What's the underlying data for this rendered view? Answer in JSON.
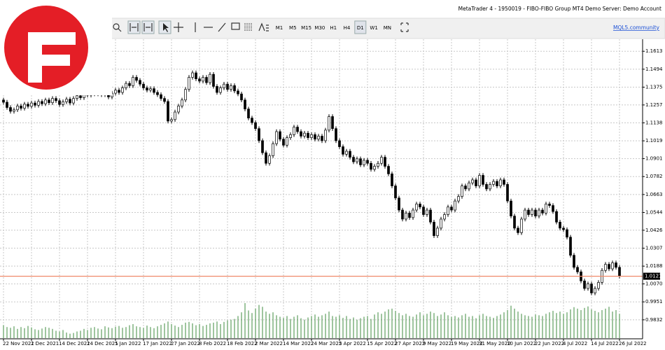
{
  "window": {
    "title": "MetaTrader 4 - 1950019 - FIBO-FIBO Group MT4 Demo Server: Demo Account"
  },
  "toolbar": {
    "timeframes": [
      "M1",
      "M5",
      "M15",
      "M30",
      "H1",
      "H4",
      "D1",
      "W1",
      "MN"
    ],
    "active": "D1",
    "link": "MQL5.community"
  },
  "chart_data": {
    "type": "candlestick",
    "categories": [
      "22 Nov 2021",
      null,
      null,
      null,
      null,
      null,
      null,
      null,
      "2 Dec 2021",
      null,
      null,
      null,
      null,
      null,
      null,
      null,
      "14 Dec 2021",
      null,
      null,
      null,
      null,
      null,
      null,
      null,
      "24 Dec 2021",
      null,
      null,
      null,
      null,
      null,
      null,
      null,
      "5 Jan 2022",
      null,
      null,
      null,
      null,
      null,
      null,
      null,
      "17 Jan 2022",
      null,
      null,
      null,
      null,
      null,
      null,
      null,
      "27 Jan 2022",
      null,
      null,
      null,
      null,
      null,
      null,
      null,
      "8 Feb 2022",
      null,
      null,
      null,
      null,
      null,
      null,
      null,
      "18 Feb 2022",
      null,
      null,
      null,
      null,
      null,
      null,
      null,
      "2 Mar 2022",
      null,
      null,
      null,
      null,
      null,
      null,
      null,
      "14 Mar 2022",
      null,
      null,
      null,
      null,
      null,
      null,
      null,
      "24 Mar 2022",
      null,
      null,
      null,
      null,
      null,
      null,
      null,
      "5 Apr 2022",
      null,
      null,
      null,
      null,
      null,
      null,
      null,
      "15 Apr 2022",
      null,
      null,
      null,
      null,
      null,
      null,
      null,
      "27 Apr 2022",
      null,
      null,
      null,
      null,
      null,
      null,
      null,
      "9 May 2022",
      null,
      null,
      null,
      null,
      null,
      null,
      null,
      "19 May 2022",
      null,
      null,
      null,
      null,
      null,
      null,
      null,
      "31 May 2022",
      null,
      null,
      null,
      null,
      null,
      null,
      null,
      "10 Jun 2022",
      null,
      null,
      null,
      null,
      null,
      null,
      null,
      "22 Jun 2022",
      null,
      null,
      null,
      null,
      null,
      null,
      null,
      "4 Jul 2022",
      null,
      null,
      null,
      null,
      null,
      null,
      null,
      "14 Jul 2022",
      null,
      null,
      null,
      null,
      null,
      null,
      null,
      "26 Jul 2022"
    ],
    "open": [
      1.129,
      1.1275,
      1.124,
      1.1215,
      1.1225,
      1.125,
      1.1235,
      1.1262,
      1.1248,
      1.127,
      1.1255,
      1.128,
      1.1265,
      1.129,
      1.1272,
      1.13,
      1.1285,
      1.126,
      1.1278,
      1.1295,
      1.127,
      1.13,
      1.1318,
      1.1305,
      1.133,
      1.1322,
      1.1345,
      1.133,
      1.135,
      1.1325,
      1.134,
      1.131,
      1.1335,
      1.1355,
      1.134,
      1.137,
      1.14,
      1.1385,
      1.144,
      1.142,
      1.1395,
      1.137,
      1.1355,
      1.1365,
      1.134,
      1.1325,
      1.13,
      1.128,
      1.115,
      1.116,
      1.121,
      1.125,
      1.129,
      1.136,
      1.144,
      1.147,
      1.143,
      1.1415,
      1.144,
      1.1405,
      1.146,
      1.138,
      1.134,
      1.137,
      1.1395,
      1.136,
      1.1385,
      1.135,
      1.133,
      1.129,
      1.123,
      1.117,
      1.114,
      1.11,
      1.102,
      1.094,
      1.087,
      1.092,
      1.1,
      1.108,
      1.103,
      1.099,
      1.104,
      1.106,
      1.111,
      1.108,
      1.105,
      1.107,
      1.104,
      1.106,
      1.103,
      1.105,
      1.102,
      1.109,
      1.118,
      1.11,
      1.102,
      1.098,
      1.093,
      1.095,
      1.091,
      1.088,
      1.09,
      1.086,
      1.089,
      1.087,
      1.083,
      1.085,
      1.087,
      1.091,
      1.085,
      1.08,
      1.072,
      1.064,
      1.056,
      1.05,
      1.054,
      1.051,
      1.056,
      1.06,
      1.058,
      1.053,
      1.056,
      1.048,
      1.039,
      1.044,
      1.05,
      1.053,
      1.058,
      1.056,
      1.062,
      1.065,
      1.072,
      1.07,
      1.074,
      1.076,
      1.072,
      1.079,
      1.073,
      1.07,
      1.073,
      1.075,
      1.072,
      1.076,
      1.073,
      1.062,
      1.052,
      1.044,
      1.041,
      1.05,
      1.056,
      1.053,
      1.056,
      1.052,
      1.056,
      1.054,
      1.06,
      1.059,
      1.055,
      1.048,
      1.044,
      1.043,
      1.038,
      1.026,
      1.018,
      1.015,
      1.009,
      1.004,
      1.007,
      1.001,
      1.004,
      1.008,
      1.016,
      1.02,
      1.017,
      1.021,
      1.018
    ],
    "high": [
      1.1305,
      1.129,
      1.1255,
      1.124,
      1.1265,
      1.1265,
      1.1277,
      1.1277,
      1.1285,
      1.1285,
      1.1295,
      1.1295,
      1.1305,
      1.1305,
      1.1315,
      1.1315,
      1.13,
      1.1293,
      1.131,
      1.131,
      1.1315,
      1.1333,
      1.1333,
      1.1345,
      1.1345,
      1.136,
      1.136,
      1.1365,
      1.1365,
      1.1355,
      1.1355,
      1.135,
      1.137,
      1.137,
      1.1385,
      1.1415,
      1.1415,
      1.1455,
      1.1455,
      1.1435,
      1.141,
      1.1385,
      1.138,
      1.138,
      1.1355,
      1.134,
      1.1315,
      1.1295,
      1.1175,
      1.1225,
      1.1265,
      1.1305,
      1.1375,
      1.1455,
      1.1485,
      1.1485,
      1.1445,
      1.1455,
      1.1455,
      1.1475,
      1.1475,
      1.1395,
      1.1385,
      1.141,
      1.141,
      1.14,
      1.14,
      1.1365,
      1.1345,
      1.1305,
      1.1245,
      1.1185,
      1.1155,
      1.1115,
      1.1035,
      1.0955,
      1.0935,
      1.1015,
      1.1095,
      1.1095,
      1.1045,
      1.1055,
      1.1075,
      1.1125,
      1.1125,
      1.1095,
      1.1085,
      1.1085,
      1.1075,
      1.1075,
      1.1065,
      1.1065,
      1.1105,
      1.1195,
      1.1195,
      1.1115,
      1.1035,
      1.0995,
      1.0965,
      1.0965,
      1.0925,
      1.0915,
      1.0915,
      1.0905,
      1.0905,
      1.0885,
      1.0865,
      1.0885,
      1.0925,
      1.0925,
      1.0865,
      1.0815,
      1.0735,
      1.0655,
      1.0575,
      1.0555,
      1.0555,
      1.0575,
      1.0615,
      1.0615,
      1.0595,
      1.0575,
      1.0575,
      1.0495,
      1.0455,
      1.0515,
      1.0545,
      1.0595,
      1.0595,
      1.0635,
      1.0665,
      1.0735,
      1.0735,
      1.0755,
      1.0775,
      1.0775,
      1.0805,
      1.0805,
      1.0745,
      1.0745,
      1.0765,
      1.0765,
      1.0775,
      1.0775,
      1.0745,
      1.0635,
      1.0535,
      1.0455,
      1.0515,
      1.0575,
      1.0575,
      1.0575,
      1.0575,
      1.0575,
      1.0575,
      1.0615,
      1.0615,
      1.0605,
      1.0565,
      1.0495,
      1.0455,
      1.0445,
      1.0395,
      1.0275,
      1.0195,
      1.0165,
      1.0105,
      1.0085,
      1.0085,
      1.0055,
      1.0095,
      1.0175,
      1.0215,
      1.0215,
      1.0225,
      1.0225,
      1.0195
    ],
    "low": [
      1.126,
      1.1225,
      1.12,
      1.12,
      1.121,
      1.122,
      1.122,
      1.1233,
      1.1233,
      1.124,
      1.124,
      1.125,
      1.125,
      1.1257,
      1.1257,
      1.127,
      1.1245,
      1.1245,
      1.1263,
      1.1255,
      1.1255,
      1.1285,
      1.129,
      1.129,
      1.1307,
      1.1307,
      1.1315,
      1.1315,
      1.131,
      1.131,
      1.1295,
      1.1295,
      1.132,
      1.1325,
      1.1325,
      1.1355,
      1.137,
      1.137,
      1.1405,
      1.138,
      1.1355,
      1.134,
      1.134,
      1.1325,
      1.131,
      1.1285,
      1.1265,
      1.1135,
      1.1135,
      1.1145,
      1.1195,
      1.1235,
      1.1275,
      1.1345,
      1.1425,
      1.1415,
      1.14,
      1.14,
      1.139,
      1.139,
      1.1365,
      1.1325,
      1.1325,
      1.1355,
      1.1345,
      1.1345,
      1.1335,
      1.1315,
      1.1275,
      1.1215,
      1.1155,
      1.1125,
      1.1085,
      1.1005,
      1.0925,
      1.0855,
      1.0855,
      1.0905,
      1.0985,
      1.1015,
      1.0975,
      1.0975,
      1.1025,
      1.1045,
      1.1065,
      1.1035,
      1.1035,
      1.1025,
      1.1025,
      1.1015,
      1.1015,
      1.1005,
      1.1005,
      1.1075,
      1.1085,
      1.1005,
      1.0965,
      1.0915,
      1.0915,
      1.0895,
      1.0865,
      1.0865,
      1.0845,
      1.0845,
      1.0855,
      1.0815,
      1.0815,
      1.0835,
      1.0855,
      1.0835,
      1.0785,
      1.0705,
      1.0625,
      1.0545,
      1.0485,
      1.0485,
      1.0495,
      1.0495,
      1.0545,
      1.0565,
      1.0515,
      1.0515,
      1.0465,
      1.0375,
      1.0375,
      1.0425,
      1.0485,
      1.0515,
      1.0545,
      1.0545,
      1.0605,
      1.0635,
      1.0685,
      1.0685,
      1.0725,
      1.0705,
      1.0705,
      1.0715,
      1.0685,
      1.0685,
      1.0715,
      1.0705,
      1.0705,
      1.0715,
      1.0605,
      1.0505,
      1.0425,
      1.0395,
      1.0395,
      1.0485,
      1.0515,
      1.0515,
      1.0505,
      1.0505,
      1.0525,
      1.0525,
      1.0575,
      1.0535,
      1.0465,
      1.0425,
      1.0415,
      1.0365,
      1.0245,
      1.0165,
      1.0135,
      1.0075,
      1.0025,
      1.0025,
      0.9995,
      0.9995,
      1.0025,
      1.0065,
      1.0145,
      1.0155,
      1.0155,
      1.0165,
      1.0106
    ],
    "close": [
      1.1275,
      1.124,
      1.1215,
      1.1225,
      1.125,
      1.1235,
      1.1262,
      1.1248,
      1.127,
      1.1255,
      1.128,
      1.1265,
      1.129,
      1.1272,
      1.13,
      1.1285,
      1.126,
      1.1278,
      1.1295,
      1.127,
      1.13,
      1.1318,
      1.1305,
      1.133,
      1.1322,
      1.1345,
      1.133,
      1.135,
      1.1325,
      1.134,
      1.131,
      1.1335,
      1.1355,
      1.134,
      1.137,
      1.14,
      1.1385,
      1.144,
      1.142,
      1.1395,
      1.137,
      1.1355,
      1.1365,
      1.134,
      1.1325,
      1.13,
      1.128,
      1.115,
      1.116,
      1.121,
      1.125,
      1.129,
      1.136,
      1.144,
      1.147,
      1.143,
      1.1415,
      1.144,
      1.1405,
      1.146,
      1.138,
      1.134,
      1.137,
      1.1395,
      1.136,
      1.1385,
      1.135,
      1.133,
      1.129,
      1.123,
      1.117,
      1.114,
      1.11,
      1.102,
      1.094,
      1.087,
      1.092,
      1.1,
      1.108,
      1.103,
      1.099,
      1.104,
      1.106,
      1.111,
      1.108,
      1.105,
      1.107,
      1.104,
      1.106,
      1.103,
      1.105,
      1.102,
      1.109,
      1.118,
      1.11,
      1.102,
      1.098,
      1.093,
      1.095,
      1.091,
      1.088,
      1.09,
      1.086,
      1.089,
      1.087,
      1.083,
      1.085,
      1.087,
      1.091,
      1.085,
      1.08,
      1.072,
      1.064,
      1.056,
      1.05,
      1.054,
      1.051,
      1.056,
      1.06,
      1.058,
      1.053,
      1.056,
      1.048,
      1.039,
      1.044,
      1.05,
      1.053,
      1.058,
      1.056,
      1.062,
      1.065,
      1.072,
      1.07,
      1.074,
      1.076,
      1.072,
      1.079,
      1.073,
      1.07,
      1.073,
      1.075,
      1.072,
      1.076,
      1.073,
      1.062,
      1.052,
      1.044,
      1.041,
      1.05,
      1.056,
      1.053,
      1.056,
      1.052,
      1.056,
      1.054,
      1.06,
      1.059,
      1.055,
      1.048,
      1.044,
      1.043,
      1.038,
      1.026,
      1.018,
      1.015,
      1.009,
      1.004,
      1.007,
      1.001,
      1.004,
      1.008,
      1.016,
      1.02,
      1.017,
      1.021,
      1.018,
      1.0121
    ],
    "volume": [
      35,
      30,
      28,
      32,
      25,
      30,
      27,
      33,
      29,
      24,
      22,
      26,
      30,
      28,
      25,
      20,
      18,
      22,
      15,
      12,
      14,
      18,
      20,
      25,
      22,
      28,
      30,
      26,
      24,
      32,
      29,
      27,
      31,
      33,
      28,
      30,
      35,
      38,
      32,
      30,
      28,
      34,
      30,
      27,
      32,
      36,
      40,
      45,
      38,
      34,
      30,
      36,
      42,
      44,
      40,
      35,
      38,
      33,
      36,
      40,
      42,
      45,
      38,
      44,
      48,
      50,
      52,
      60,
      70,
      95,
      75,
      68,
      80,
      90,
      85,
      72,
      66,
      70,
      62,
      58,
      55,
      60,
      52,
      58,
      62,
      54,
      50,
      56,
      60,
      64,
      58,
      62,
      66,
      72,
      60,
      58,
      62,
      55,
      60,
      52,
      56,
      50,
      54,
      58,
      60,
      52,
      64,
      70,
      66,
      72,
      78,
      80,
      74,
      68,
      62,
      66,
      60,
      58,
      64,
      70,
      62,
      66,
      72,
      68,
      60,
      64,
      70,
      62,
      58,
      60,
      56,
      62,
      66,
      58,
      60,
      54,
      62,
      66,
      60,
      58,
      55,
      60,
      64,
      70,
      76,
      88,
      80,
      72,
      66,
      62,
      60,
      58,
      64,
      62,
      60,
      66,
      70,
      74,
      68,
      72,
      66,
      70,
      78,
      84,
      80,
      76,
      82,
      86,
      78,
      74,
      70,
      76,
      80,
      85,
      72,
      76,
      66
    ],
    "candle_color": "#000000",
    "volume_color": "#3d8b3d",
    "price_line_color": "#f08a6a",
    "ylim": [
      0.9706,
      1.1693
    ],
    "yticks": [
      1.1613,
      1.1494,
      1.1375,
      1.1257,
      1.1138,
      1.1019,
      1.0901,
      1.0782,
      1.0663,
      1.0544,
      1.0426,
      1.0307,
      1.0188,
      {
        "value": 1.007,
        "label": "1.0070"
      },
      0.9951,
      0.9832
    ],
    "current_price": 1.0121,
    "grid": true
  }
}
